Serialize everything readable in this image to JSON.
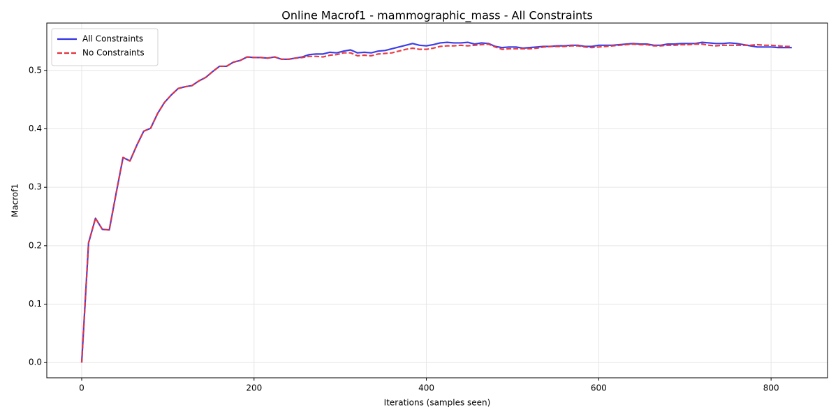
{
  "chart_data": {
    "type": "line",
    "title": "Online Macrof1 - mammographic_mass - All Constraints",
    "x_label": "Iterations (samples seen)",
    "y_label": "Macrof1",
    "x": [
      0,
      8,
      16,
      24,
      32,
      40,
      48,
      56,
      64,
      72,
      80,
      88,
      96,
      104,
      112,
      120,
      128,
      136,
      144,
      152,
      160,
      168,
      176,
      184,
      192,
      200,
      208,
      216,
      224,
      232,
      240,
      248,
      256,
      264,
      272,
      280,
      288,
      296,
      304,
      312,
      320,
      328,
      336,
      344,
      352,
      360,
      368,
      376,
      384,
      392,
      400,
      408,
      416,
      424,
      432,
      440,
      448,
      456,
      464,
      472,
      480,
      488,
      496,
      504,
      512,
      520,
      528,
      536,
      544,
      552,
      560,
      568,
      576,
      584,
      592,
      600,
      608,
      616,
      624,
      632,
      640,
      648,
      656,
      664,
      672,
      680,
      688,
      696,
      704,
      712,
      720,
      728,
      736,
      744,
      752,
      760,
      768,
      776,
      784,
      792,
      800,
      808,
      816,
      824
    ],
    "series": [
      {
        "name": "All Constraints",
        "color": "#3333e6",
        "linestyle": "solid",
        "values": [
          0.0,
          0.205,
          0.247,
          0.228,
          0.227,
          0.29,
          0.351,
          0.345,
          0.372,
          0.396,
          0.401,
          0.426,
          0.445,
          0.458,
          0.469,
          0.472,
          0.474,
          0.482,
          0.488,
          0.498,
          0.507,
          0.507,
          0.514,
          0.517,
          0.523,
          0.522,
          0.522,
          0.521,
          0.523,
          0.519,
          0.519,
          0.521,
          0.523,
          0.527,
          0.528,
          0.528,
          0.531,
          0.53,
          0.533,
          0.535,
          0.53,
          0.531,
          0.53,
          0.533,
          0.534,
          0.537,
          0.54,
          0.543,
          0.546,
          0.543,
          0.542,
          0.544,
          0.547,
          0.548,
          0.547,
          0.547,
          0.548,
          0.545,
          0.547,
          0.546,
          0.541,
          0.539,
          0.54,
          0.54,
          0.538,
          0.539,
          0.54,
          0.541,
          0.541,
          0.542,
          0.542,
          0.543,
          0.543,
          0.541,
          0.541,
          0.543,
          0.543,
          0.543,
          0.544,
          0.545,
          0.546,
          0.545,
          0.545,
          0.543,
          0.543,
          0.545,
          0.545,
          0.546,
          0.546,
          0.546,
          0.548,
          0.547,
          0.546,
          0.546,
          0.547,
          0.546,
          0.544,
          0.542,
          0.54,
          0.54,
          0.54,
          0.539,
          0.539,
          0.539
        ]
      },
      {
        "name": "No Constraints",
        "color": "#e6333d",
        "linestyle": "dashed",
        "values": [
          0.0,
          0.205,
          0.247,
          0.228,
          0.227,
          0.29,
          0.351,
          0.345,
          0.372,
          0.396,
          0.401,
          0.426,
          0.445,
          0.458,
          0.469,
          0.472,
          0.474,
          0.482,
          0.488,
          0.498,
          0.507,
          0.507,
          0.514,
          0.517,
          0.523,
          0.522,
          0.522,
          0.521,
          0.523,
          0.519,
          0.519,
          0.521,
          0.522,
          0.524,
          0.524,
          0.523,
          0.526,
          0.527,
          0.53,
          0.53,
          0.525,
          0.526,
          0.525,
          0.528,
          0.529,
          0.53,
          0.533,
          0.536,
          0.538,
          0.536,
          0.536,
          0.538,
          0.541,
          0.542,
          0.542,
          0.543,
          0.542,
          0.543,
          0.544,
          0.545,
          0.54,
          0.536,
          0.537,
          0.537,
          0.537,
          0.537,
          0.538,
          0.54,
          0.541,
          0.541,
          0.541,
          0.542,
          0.542,
          0.54,
          0.539,
          0.54,
          0.541,
          0.542,
          0.543,
          0.544,
          0.545,
          0.544,
          0.544,
          0.542,
          0.542,
          0.543,
          0.543,
          0.544,
          0.544,
          0.545,
          0.545,
          0.543,
          0.542,
          0.543,
          0.543,
          0.543,
          0.543,
          0.543,
          0.544,
          0.543,
          0.543,
          0.542,
          0.541,
          0.541
        ]
      }
    ],
    "xlim": [
      -40.5,
      865.5
    ],
    "ylim": [
      -0.026,
      0.581
    ],
    "xticks": [
      0,
      200,
      400,
      600,
      800
    ],
    "yticks": [
      {
        "value": 0,
        "label": "0.0"
      },
      0.1,
      0.2,
      0.3,
      0.4,
      0.5
    ],
    "grid": true,
    "legend": "upper left"
  }
}
